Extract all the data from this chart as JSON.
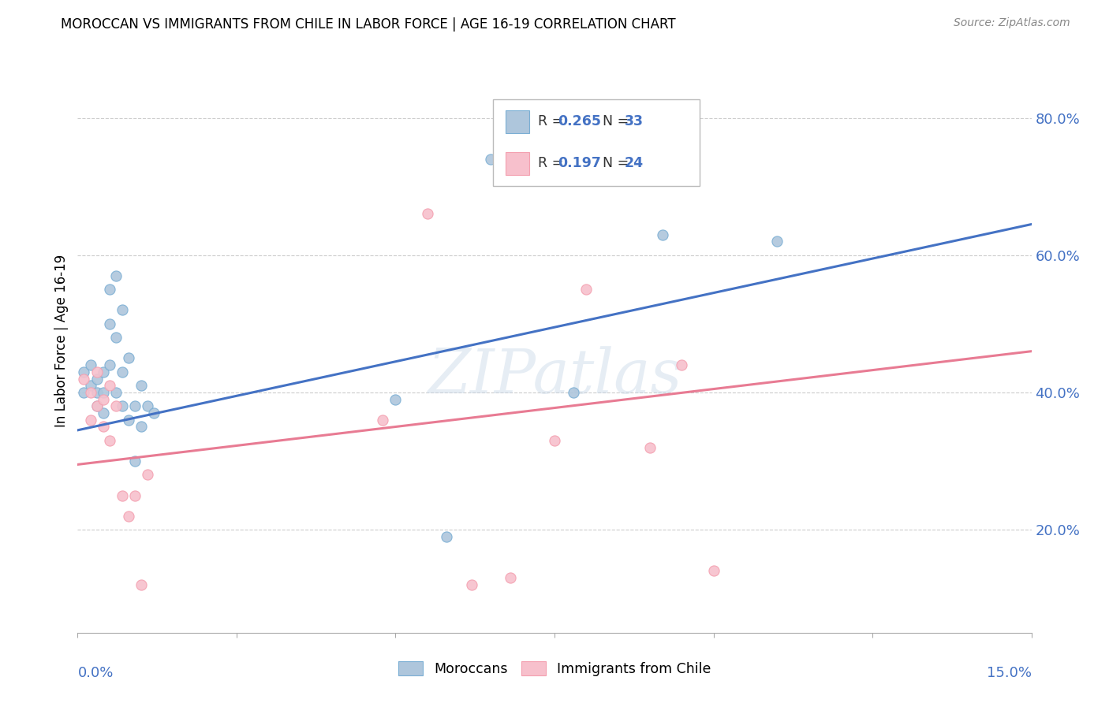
{
  "title": "MOROCCAN VS IMMIGRANTS FROM CHILE IN LABOR FORCE | AGE 16-19 CORRELATION CHART",
  "source": "Source: ZipAtlas.com",
  "ylabel": "In Labor Force | Age 16-19",
  "right_yticks": [
    "20.0%",
    "40.0%",
    "60.0%",
    "80.0%"
  ],
  "right_ytick_vals": [
    0.2,
    0.4,
    0.6,
    0.8
  ],
  "xlim": [
    0.0,
    0.15
  ],
  "ylim": [
    0.05,
    0.9
  ],
  "blue_color": "#7BAFD4",
  "blue_fill": "#AEC6DC",
  "pink_color": "#F4A0B0",
  "pink_fill": "#F7C0CC",
  "blue_line_color": "#4472C4",
  "pink_line_color": "#E87B93",
  "legend_text_color": "#4472C4",
  "blue_r": "0.265",
  "blue_n": "33",
  "pink_r": "0.197",
  "pink_n": "24",
  "watermark": "ZIPatlas",
  "moroccan_x": [
    0.001,
    0.001,
    0.002,
    0.002,
    0.003,
    0.003,
    0.003,
    0.004,
    0.004,
    0.004,
    0.005,
    0.005,
    0.005,
    0.006,
    0.006,
    0.006,
    0.007,
    0.007,
    0.007,
    0.008,
    0.008,
    0.009,
    0.009,
    0.01,
    0.01,
    0.011,
    0.012,
    0.05,
    0.058,
    0.065,
    0.078,
    0.092,
    0.11
  ],
  "moroccan_y": [
    0.43,
    0.4,
    0.44,
    0.41,
    0.42,
    0.4,
    0.38,
    0.43,
    0.4,
    0.37,
    0.55,
    0.5,
    0.44,
    0.57,
    0.48,
    0.4,
    0.52,
    0.43,
    0.38,
    0.45,
    0.36,
    0.38,
    0.3,
    0.41,
    0.35,
    0.38,
    0.37,
    0.39,
    0.19,
    0.74,
    0.4,
    0.63,
    0.62
  ],
  "chile_x": [
    0.001,
    0.002,
    0.002,
    0.003,
    0.003,
    0.004,
    0.004,
    0.005,
    0.005,
    0.006,
    0.007,
    0.008,
    0.009,
    0.01,
    0.011,
    0.048,
    0.055,
    0.062,
    0.068,
    0.075,
    0.08,
    0.09,
    0.095,
    0.1
  ],
  "chile_y": [
    0.42,
    0.4,
    0.36,
    0.38,
    0.43,
    0.39,
    0.35,
    0.41,
    0.33,
    0.38,
    0.25,
    0.22,
    0.25,
    0.12,
    0.28,
    0.36,
    0.66,
    0.12,
    0.13,
    0.33,
    0.55,
    0.32,
    0.44,
    0.14
  ],
  "blue_trend_x": [
    0.0,
    0.15
  ],
  "blue_trend_y": [
    0.345,
    0.645
  ],
  "pink_trend_x": [
    0.0,
    0.15
  ],
  "pink_trend_y": [
    0.295,
    0.46
  ]
}
